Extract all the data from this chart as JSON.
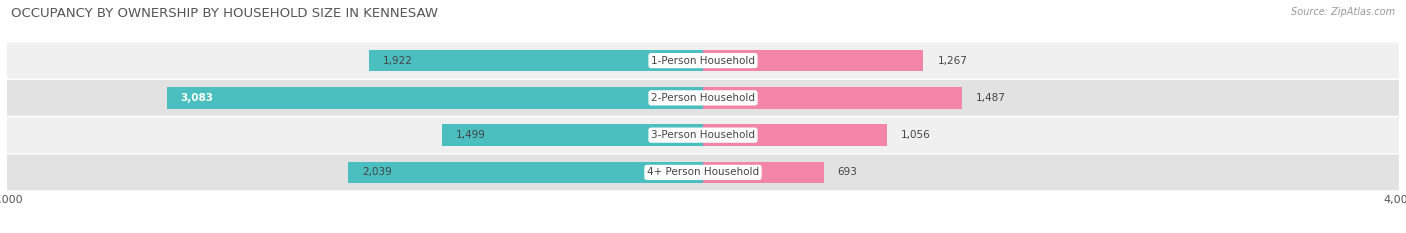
{
  "title": "OCCUPANCY BY OWNERSHIP BY HOUSEHOLD SIZE IN KENNESAW",
  "source": "Source: ZipAtlas.com",
  "categories": [
    "1-Person Household",
    "2-Person Household",
    "3-Person Household",
    "4+ Person Household"
  ],
  "owner_values": [
    1922,
    3083,
    1499,
    2039
  ],
  "renter_values": [
    1267,
    1487,
    1056,
    693
  ],
  "axis_max": 4000,
  "owner_color": "#4bbfbf",
  "renter_color": "#f285a8",
  "row_bg_colors_light": "#f0f0f0",
  "row_bg_colors_dark": "#e2e2e2",
  "title_fontsize": 9.5,
  "label_fontsize": 7.5,
  "tick_fontsize": 8,
  "source_fontsize": 7,
  "legend_fontsize": 8,
  "fig_bg_color": "#ffffff"
}
